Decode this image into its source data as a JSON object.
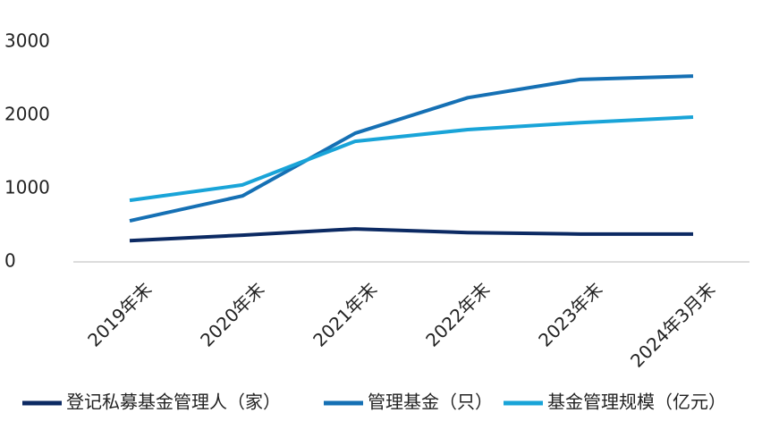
{
  "chart_data": {
    "type": "line",
    "categories": [
      "2019年末",
      "2020年末",
      "2021年末",
      "2022年末",
      "2023年末",
      "2024年3月末"
    ],
    "series": [
      {
        "name": "登记私募基金管理人（家）",
        "color": "#0c2a63",
        "values": [
          290,
          365,
          450,
          400,
          380,
          380
        ]
      },
      {
        "name": "管理基金（只）",
        "color": "#1570b4",
        "values": [
          560,
          900,
          1755,
          2240,
          2490,
          2535
        ]
      },
      {
        "name": "基金管理规模（亿元）",
        "color": "#19a4d8",
        "values": [
          840,
          1050,
          1645,
          1805,
          1900,
          1975
        ]
      }
    ],
    "ylim": [
      0,
      3000
    ],
    "yticks": [
      0,
      1000,
      2000,
      3000
    ],
    "grid": false,
    "legend": "bottom"
  }
}
